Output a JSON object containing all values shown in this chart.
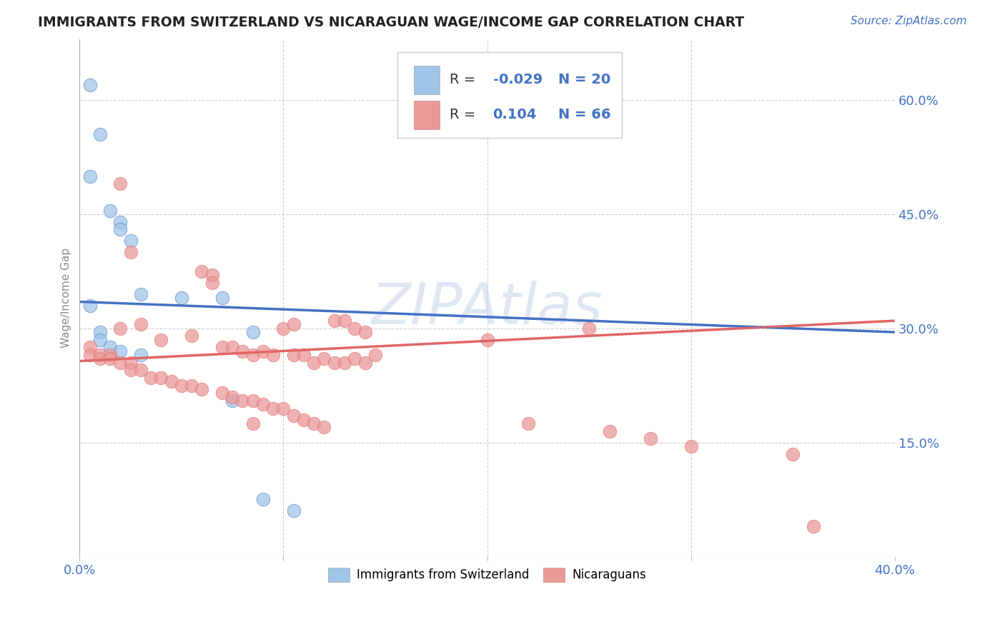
{
  "title": "IMMIGRANTS FROM SWITZERLAND VS NICARAGUAN WAGE/INCOME GAP CORRELATION CHART",
  "source": "Source: ZipAtlas.com",
  "ylabel": "Wage/Income Gap",
  "xlim": [
    0.0,
    0.4
  ],
  "ylim": [
    0.0,
    0.68
  ],
  "right_yticks": [
    0.0,
    0.15,
    0.3,
    0.45,
    0.6
  ],
  "right_yticklabels": [
    "",
    "15.0%",
    "30.0%",
    "45.0%",
    "60.0%"
  ],
  "r_swiss": -0.029,
  "n_swiss": 20,
  "r_nica": 0.104,
  "n_nica": 66,
  "blue_scatter_color": "#9fc5e8",
  "pink_scatter_color": "#ea9999",
  "blue_line_color": "#4472c4",
  "pink_line_color": "#e06666",
  "legend_label_swiss": "Immigrants from Switzerland",
  "legend_label_nica": "Nicaraguans",
  "blue_line_x0": 0.0,
  "blue_line_y0": 0.335,
  "blue_line_x1": 0.4,
  "blue_line_y1": 0.295,
  "pink_line_x0": 0.0,
  "pink_line_y0": 0.257,
  "pink_line_x1": 0.4,
  "pink_line_y1": 0.31,
  "swiss_x": [
    0.005,
    0.01,
    0.005,
    0.015,
    0.02,
    0.02,
    0.025,
    0.03,
    0.005,
    0.01,
    0.01,
    0.015,
    0.02,
    0.03,
    0.05,
    0.07,
    0.085,
    0.09,
    0.105,
    0.075
  ],
  "swiss_y": [
    0.62,
    0.555,
    0.5,
    0.455,
    0.44,
    0.43,
    0.415,
    0.345,
    0.33,
    0.295,
    0.285,
    0.275,
    0.27,
    0.265,
    0.34,
    0.34,
    0.295,
    0.075,
    0.06,
    0.205
  ],
  "nica_x": [
    0.02,
    0.025,
    0.06,
    0.065,
    0.065,
    0.02,
    0.03,
    0.04,
    0.055,
    0.07,
    0.075,
    0.08,
    0.085,
    0.09,
    0.095,
    0.1,
    0.105,
    0.105,
    0.11,
    0.115,
    0.12,
    0.125,
    0.125,
    0.13,
    0.13,
    0.135,
    0.135,
    0.14,
    0.14,
    0.145,
    0.005,
    0.005,
    0.01,
    0.01,
    0.015,
    0.015,
    0.02,
    0.025,
    0.025,
    0.03,
    0.035,
    0.04,
    0.045,
    0.05,
    0.055,
    0.06,
    0.07,
    0.075,
    0.08,
    0.085,
    0.09,
    0.095,
    0.1,
    0.105,
    0.11,
    0.115,
    0.12,
    0.085,
    0.2,
    0.25,
    0.22,
    0.26,
    0.28,
    0.3,
    0.35,
    0.36
  ],
  "nica_y": [
    0.49,
    0.4,
    0.375,
    0.37,
    0.36,
    0.3,
    0.305,
    0.285,
    0.29,
    0.275,
    0.275,
    0.27,
    0.265,
    0.27,
    0.265,
    0.3,
    0.265,
    0.305,
    0.265,
    0.255,
    0.26,
    0.255,
    0.31,
    0.255,
    0.31,
    0.26,
    0.3,
    0.255,
    0.295,
    0.265,
    0.275,
    0.265,
    0.265,
    0.26,
    0.265,
    0.26,
    0.255,
    0.255,
    0.245,
    0.245,
    0.235,
    0.235,
    0.23,
    0.225,
    0.225,
    0.22,
    0.215,
    0.21,
    0.205,
    0.205,
    0.2,
    0.195,
    0.195,
    0.185,
    0.18,
    0.175,
    0.17,
    0.175,
    0.285,
    0.3,
    0.175,
    0.165,
    0.155,
    0.145,
    0.135,
    0.04
  ]
}
